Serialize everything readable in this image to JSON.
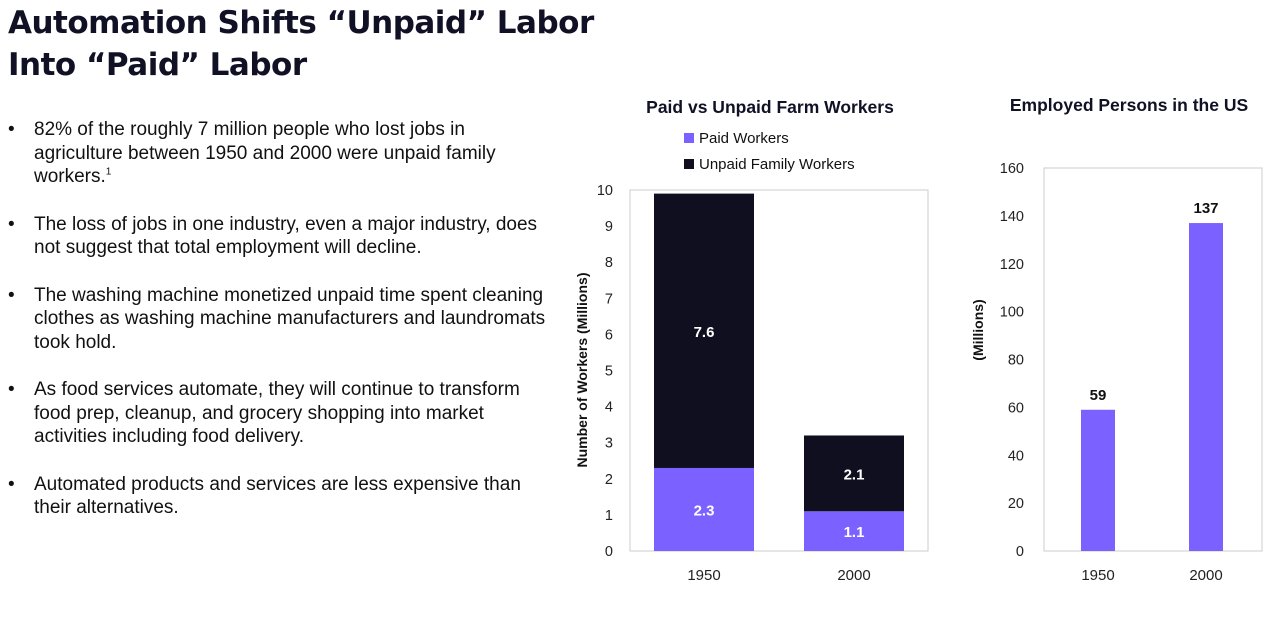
{
  "page": {
    "title_line1": "Automation Shifts “Unpaid” Labor",
    "title_line2": "Into “Paid” Labor"
  },
  "bullets": [
    {
      "text": "82% of the roughly 7 million people who lost jobs in agriculture between 1950 and 2000 were unpaid family workers.",
      "footnote": "1"
    },
    {
      "text": "The loss of jobs in one industry, even a major industry, does not suggest that total employment will decline.",
      "footnote": ""
    },
    {
      "text": "The washing machine monetized unpaid time spent cleaning clothes as washing machine manufacturers and laundromats took hold.",
      "footnote": ""
    },
    {
      "text": "As food services automate, they will continue to transform food prep, cleanup, and grocery shopping into market activities including food delivery.",
      "footnote": ""
    },
    {
      "text": "Automated products and services are less expensive than their alternatives.",
      "footnote": ""
    }
  ],
  "bullet_marker": "•",
  "colors": {
    "paid": "#7b61ff",
    "unpaid": "#0f0f1f",
    "axis": "#cccccc",
    "title": "#111126"
  },
  "chart_data": [
    {
      "type": "bar",
      "stacked": true,
      "title": "Paid vs Unpaid Farm Workers",
      "ylabel": "Number of Workers (Millions)",
      "xlabel": "",
      "categories": [
        "1950",
        "2000"
      ],
      "series": [
        {
          "name": "Paid Workers",
          "values": [
            2.3,
            1.1
          ],
          "labels": [
            "2.3",
            "1.1"
          ]
        },
        {
          "name": "Unpaid Family Workers",
          "values": [
            7.6,
            2.1
          ],
          "labels": [
            "7.6",
            "2.1"
          ]
        }
      ],
      "ylim": [
        0,
        10
      ],
      "yticks": [
        "0",
        "1",
        "2",
        "3",
        "4",
        "5",
        "6",
        "7",
        "8",
        "9",
        "10"
      ],
      "legend": "top"
    },
    {
      "type": "bar",
      "title": "Employed Persons in the US",
      "ylabel": "(Millions)",
      "xlabel": "",
      "categories": [
        "1950",
        "2000"
      ],
      "values": [
        59,
        137
      ],
      "labels": [
        "59",
        "137"
      ],
      "ylim": [
        0,
        160
      ],
      "yticks": [
        "0",
        "20",
        "40",
        "60",
        "80",
        "100",
        "120",
        "140",
        "160"
      ],
      "legend": "none"
    }
  ]
}
